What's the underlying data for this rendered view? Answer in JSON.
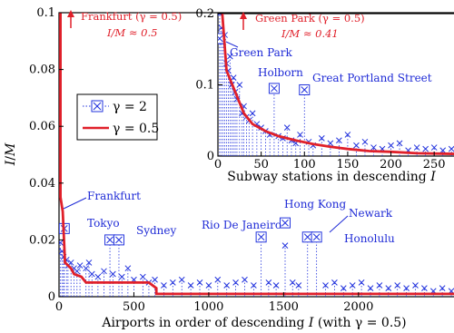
{
  "colors": {
    "gamma2": "#2233dd",
    "gamma05": "#e0202a",
    "annotation_blue": "#1f2bd6",
    "axis": "#000000"
  },
  "chart_data": [
    {
      "type": "scatter",
      "name": "main",
      "xlabel": "Airports in order of descending I (with γ = 0.5)",
      "ylabel": "I/M",
      "xlim": [
        0,
        2650
      ],
      "ylim": [
        0,
        0.1
      ],
      "x_ticks": [
        0,
        500,
        1000,
        1500,
        2000
      ],
      "y_ticks": [
        0,
        0.02,
        0.04,
        0.06,
        0.08,
        0.1
      ],
      "x_tick_labels": [
        "0",
        "500",
        "1000",
        "1500",
        "2000"
      ],
      "y_tick_labels": [
        "0",
        "0.02",
        "0.04",
        "0.06",
        "0.08",
        "0.1"
      ],
      "legend": {
        "position": "left",
        "entries": [
          {
            "label": "γ = 2",
            "marker": "boxed-x"
          },
          {
            "label": "γ = 0.5",
            "marker": "line"
          }
        ]
      },
      "series": [
        {
          "name": "γ = 2",
          "style": "boxed-x points, dotted drop lines",
          "points": [
            [
              10,
              0.019
            ],
            [
              20,
              0.016
            ],
            [
              30,
              0.014
            ],
            [
              35,
              0.024
            ],
            [
              50,
              0.013
            ],
            [
              60,
              0.011
            ],
            [
              80,
              0.012
            ],
            [
              100,
              0.01
            ],
            [
              120,
              0.009
            ],
            [
              140,
              0.011
            ],
            [
              180,
              0.01
            ],
            [
              200,
              0.012
            ],
            [
              220,
              0.008
            ],
            [
              260,
              0.007
            ],
            [
              300,
              0.009
            ],
            [
              340,
              0.02
            ],
            [
              360,
              0.008
            ],
            [
              400,
              0.02
            ],
            [
              420,
              0.007
            ],
            [
              460,
              0.01
            ],
            [
              500,
              0.006
            ],
            [
              560,
              0.007
            ],
            [
              600,
              0.005
            ],
            [
              640,
              0.006
            ],
            [
              700,
              0.004
            ],
            [
              760,
              0.005
            ],
            [
              820,
              0.006
            ],
            [
              880,
              0.004
            ],
            [
              940,
              0.005
            ],
            [
              1000,
              0.004
            ],
            [
              1060,
              0.006
            ],
            [
              1120,
              0.004
            ],
            [
              1180,
              0.005
            ],
            [
              1240,
              0.006
            ],
            [
              1300,
              0.004
            ],
            [
              1350,
              0.021
            ],
            [
              1400,
              0.005
            ],
            [
              1450,
              0.004
            ],
            [
              1510,
              0.018
            ],
            [
              1560,
              0.005
            ],
            [
              1600,
              0.004
            ],
            [
              1660,
              0.021
            ],
            [
              1720,
              0.021
            ],
            [
              1780,
              0.004
            ],
            [
              1840,
              0.005
            ],
            [
              1900,
              0.003
            ],
            [
              1960,
              0.004
            ],
            [
              2020,
              0.005
            ],
            [
              2080,
              0.003
            ],
            [
              2140,
              0.004
            ],
            [
              2200,
              0.003
            ],
            [
              2260,
              0.004
            ],
            [
              2320,
              0.003
            ],
            [
              2380,
              0.004
            ],
            [
              2440,
              0.003
            ],
            [
              2500,
              0.002
            ],
            [
              2560,
              0.003
            ],
            [
              2620,
              0.002
            ]
          ]
        },
        {
          "name": "γ = 0.5",
          "style": "red step line",
          "points": [
            [
              0,
              0.1
            ],
            [
              10,
              0.1
            ],
            [
              10,
              0.035
            ],
            [
              25,
              0.03
            ],
            [
              40,
              0.012
            ],
            [
              80,
              0.01
            ],
            [
              100,
              0.008
            ],
            [
              150,
              0.007
            ],
            [
              180,
              0.005
            ],
            [
              600,
              0.005
            ],
            [
              650,
              0.003
            ],
            [
              650,
              0.001
            ],
            [
              2650,
              0.001
            ]
          ]
        }
      ],
      "annotations": [
        {
          "label": "Frankfurt",
          "x": 35,
          "y": 0.024,
          "color": "blue"
        },
        {
          "label": "Tokyo",
          "x": 340,
          "y": 0.02,
          "color": "blue"
        },
        {
          "label": "Sydney",
          "x": 400,
          "y": 0.02,
          "color": "blue"
        },
        {
          "label": "Rio De Janeiro",
          "x": 1350,
          "y": 0.021,
          "color": "blue"
        },
        {
          "label": "Hong Kong",
          "x": 1510,
          "y": 0.026,
          "color": "blue"
        },
        {
          "label": "Newark",
          "x": 1660,
          "y": 0.021,
          "color": "blue"
        },
        {
          "label": "Honolulu",
          "x": 1720,
          "y": 0.021,
          "color": "blue"
        },
        {
          "label": "Frankfurt (γ = 0.5)",
          "line2": "I/M ≈ 0.5",
          "color": "red",
          "arrow": "up"
        }
      ]
    },
    {
      "type": "scatter",
      "name": "inset",
      "xlabel": "Subway stations in descending I",
      "xlim": [
        0,
        275
      ],
      "ylim": [
        0,
        0.2
      ],
      "x_ticks": [
        0,
        50,
        100,
        150,
        200,
        250
      ],
      "y_ticks": [
        0,
        0.1,
        0.2
      ],
      "x_tick_labels": [
        "0",
        "50",
        "100",
        "150",
        "200",
        "250"
      ],
      "y_tick_labels": [
        "0",
        "0.1",
        "0.2"
      ],
      "series": [
        {
          "name": "γ = 2",
          "style": "blue x points, dotted lines",
          "points": [
            [
              2,
              0.2
            ],
            [
              4,
              0.18
            ],
            [
              6,
              0.16
            ],
            [
              8,
              0.17
            ],
            [
              10,
              0.13
            ],
            [
              12,
              0.12
            ],
            [
              14,
              0.14
            ],
            [
              16,
              0.1
            ],
            [
              18,
              0.11
            ],
            [
              20,
              0.09
            ],
            [
              22,
              0.08
            ],
            [
              25,
              0.1
            ],
            [
              28,
              0.06
            ],
            [
              30,
              0.07
            ],
            [
              33,
              0.055
            ],
            [
              36,
              0.05
            ],
            [
              40,
              0.06
            ],
            [
              45,
              0.045
            ],
            [
              50,
              0.04
            ],
            [
              55,
              0.035
            ],
            [
              60,
              0.03
            ],
            [
              65,
              0.095
            ],
            [
              70,
              0.028
            ],
            [
              75,
              0.025
            ],
            [
              80,
              0.04
            ],
            [
              85,
              0.022
            ],
            [
              90,
              0.018
            ],
            [
              95,
              0.03
            ],
            [
              100,
              0.093
            ],
            [
              105,
              0.02
            ],
            [
              110,
              0.015
            ],
            [
              120,
              0.025
            ],
            [
              130,
              0.018
            ],
            [
              140,
              0.022
            ],
            [
              150,
              0.03
            ],
            [
              160,
              0.015
            ],
            [
              170,
              0.02
            ],
            [
              180,
              0.012
            ],
            [
              190,
              0.01
            ],
            [
              200,
              0.015
            ],
            [
              210,
              0.018
            ],
            [
              220,
              0.008
            ],
            [
              230,
              0.012
            ],
            [
              240,
              0.01
            ],
            [
              250,
              0.012
            ],
            [
              260,
              0.008
            ],
            [
              270,
              0.01
            ]
          ]
        },
        {
          "name": "γ = 0.5",
          "style": "red step line",
          "points": [
            [
              5,
              0.2
            ],
            [
              10,
              0.12
            ],
            [
              20,
              0.09
            ],
            [
              30,
              0.06
            ],
            [
              40,
              0.045
            ],
            [
              55,
              0.035
            ],
            [
              70,
              0.028
            ],
            [
              90,
              0.022
            ],
            [
              110,
              0.017
            ],
            [
              130,
              0.013
            ],
            [
              150,
              0.01
            ],
            [
              175,
              0.007
            ],
            [
              200,
              0.006
            ],
            [
              230,
              0.004
            ],
            [
              275,
              0.003
            ]
          ]
        }
      ],
      "annotations": [
        {
          "label": "Green Park",
          "x": 2,
          "y": 0.165,
          "color": "blue"
        },
        {
          "label": "Holborn",
          "x": 65,
          "y": 0.095,
          "color": "blue"
        },
        {
          "label": "Great Portland Street",
          "x": 100,
          "y": 0.093,
          "color": "blue"
        },
        {
          "label": "Green Park (γ = 0.5)",
          "line2": "I/M ≈ 0.41",
          "color": "red",
          "arrow": "up"
        }
      ]
    }
  ]
}
